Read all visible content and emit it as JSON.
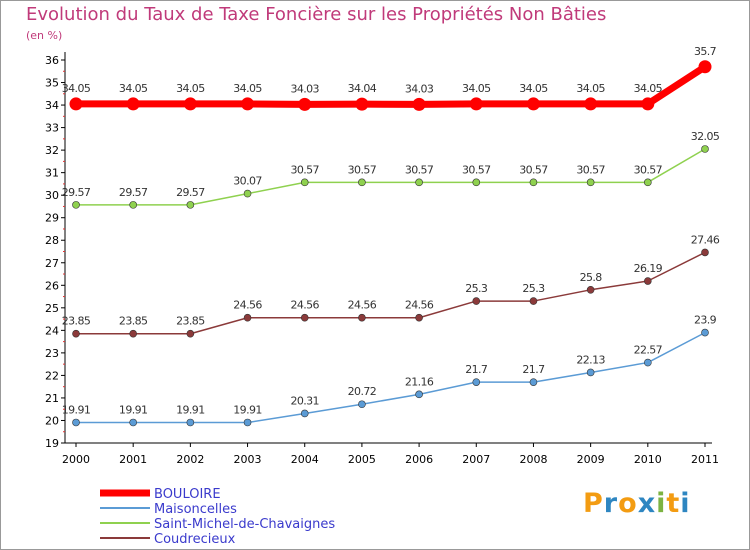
{
  "title": "Evolution du Taux de Taxe Foncière sur les Propriétés Non Bâties",
  "unit": "(en %)",
  "logo_text": "Proxiti",
  "chart_data": {
    "type": "line",
    "title": "Evolution du Taux de Taxe Foncière sur les Propriétés Non Bâties",
    "ylabel": "(en %)",
    "x": [
      "2000",
      "2001",
      "2002",
      "2003",
      "2004",
      "2005",
      "2006",
      "2007",
      "2008",
      "2009",
      "2010",
      "2011"
    ],
    "ylim": [
      19,
      36
    ],
    "yticks": [
      "19",
      "20",
      "21",
      "22",
      "23",
      "24",
      "25",
      "26",
      "27",
      "28",
      "29",
      "30",
      "31",
      "32",
      "33",
      "34",
      "35",
      "36"
    ],
    "grid": false,
    "legend_position": "bottom-left",
    "series": [
      {
        "name": "BOULOIRE",
        "color": "#ff0000",
        "values": [
          34.05,
          34.05,
          34.05,
          34.05,
          34.03,
          34.04,
          34.03,
          34.05,
          34.05,
          34.05,
          34.05,
          35.7
        ],
        "labels": [
          "34.05",
          "34.05",
          "34.05",
          "34.05",
          "34.03",
          "34.04",
          "34.03",
          "34.05",
          "34.05",
          "34.05",
          "34.05",
          "35.7"
        ]
      },
      {
        "name": "Maisoncelles",
        "color": "#5b9bd5",
        "values": [
          19.91,
          19.91,
          19.91,
          19.91,
          20.31,
          20.72,
          21.16,
          21.7,
          21.7,
          22.13,
          22.57,
          23.9
        ],
        "labels": [
          "19.91",
          "19.91",
          "19.91",
          "19.91",
          "20.31",
          "20.72",
          "21.16",
          "21.7",
          "21.7",
          "22.13",
          "22.57",
          "23.9"
        ]
      },
      {
        "name": "Saint-Michel-de-Chavaignes",
        "color": "#8fd14f",
        "values": [
          29.57,
          29.57,
          29.57,
          30.07,
          30.57,
          30.57,
          30.57,
          30.57,
          30.57,
          30.57,
          30.57,
          32.05
        ],
        "labels": [
          "29.57",
          "29.57",
          "29.57",
          "30.07",
          "30.57",
          "30.57",
          "30.57",
          "30.57",
          "30.57",
          "30.57",
          "30.57",
          "32.05"
        ]
      },
      {
        "name": "Coudrecieux",
        "color": "#8b3a3a",
        "values": [
          23.85,
          23.85,
          23.85,
          24.56,
          24.56,
          24.56,
          24.56,
          25.3,
          25.3,
          25.8,
          26.19,
          27.46
        ],
        "labels": [
          "23.85",
          "23.85",
          "23.85",
          "24.56",
          "24.56",
          "24.56",
          "24.56",
          "25.3",
          "25.3",
          "25.8",
          "26.19",
          "27.46"
        ]
      }
    ]
  }
}
